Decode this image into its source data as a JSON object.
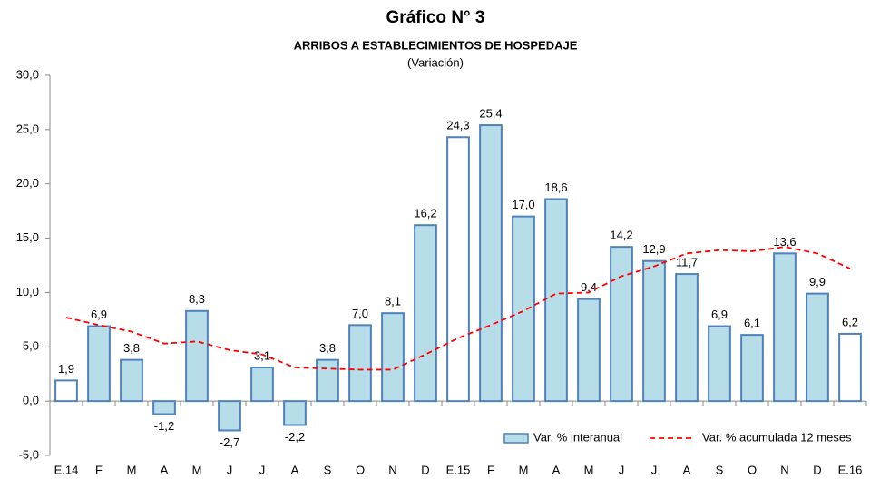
{
  "chart_data": {
    "type": "bar_line",
    "title": "Gráfico N° 3",
    "subtitle": "ARRIBOS A ESTABLECIMIENTOS DE HOSPEDAJE",
    "y_axis_label": "(Variación)",
    "categories": [
      "E.14",
      "F",
      "M",
      "A",
      "M",
      "J",
      "J",
      "A",
      "S",
      "O",
      "N",
      "D",
      "E.15",
      "F",
      "M",
      "A",
      "M",
      "J",
      "J",
      "A",
      "S",
      "O",
      "N",
      "D",
      "E.16"
    ],
    "series": [
      {
        "name": "Var. % interanual",
        "type": "bar",
        "color": "#b7dde8",
        "edge_color": "#4f81bd",
        "bar_colors": [
          "#ffffff",
          "#b7dde8",
          "#b7dde8",
          "#b7dde8",
          "#b7dde8",
          "#b7dde8",
          "#b7dde8",
          "#b7dde8",
          "#b7dde8",
          "#b7dde8",
          "#b7dde8",
          "#b7dde8",
          "#ffffff",
          "#b7dde8",
          "#b7dde8",
          "#b7dde8",
          "#b7dde8",
          "#b7dde8",
          "#b7dde8",
          "#b7dde8",
          "#b7dde8",
          "#b7dde8",
          "#b7dde8",
          "#b7dde8",
          "#ffffff"
        ],
        "values": [
          1.9,
          6.9,
          3.8,
          -1.2,
          8.3,
          -2.7,
          3.1,
          -2.2,
          3.8,
          7.0,
          8.1,
          16.2,
          24.3,
          25.4,
          17.0,
          18.6,
          9.4,
          14.2,
          12.9,
          11.7,
          6.9,
          6.1,
          13.6,
          9.9,
          6.2
        ],
        "value_labels": [
          "1,9",
          "6,9",
          "3,8",
          "-1,2",
          "8,3",
          "-2,7",
          "3,1",
          "-2,2",
          "3,8",
          "7,0",
          "8,1",
          "16,2",
          "24,3",
          "25,4",
          "17,0",
          "18,6",
          "9,4",
          "14,2",
          "12,9",
          "11,7",
          "6,9",
          "6,1",
          "13,6",
          "9,9",
          "6,2"
        ]
      },
      {
        "name": "Var. % acumulada 12 meses",
        "type": "line",
        "color": "#ff0000",
        "dashed": true,
        "values": [
          7.7,
          7.0,
          6.4,
          5.3,
          5.5,
          4.7,
          4.3,
          3.1,
          3.0,
          2.9,
          2.9,
          4.3,
          5.8,
          7.0,
          8.3,
          9.9,
          10.0,
          11.5,
          12.4,
          13.6,
          13.9,
          13.8,
          14.2,
          13.6,
          12.2
        ]
      }
    ],
    "ylim": [
      -5,
      30
    ],
    "yticks": [
      {
        "value": -5,
        "label": "-5,0"
      },
      {
        "value": 0,
        "label": "0,0"
      },
      {
        "value": 5,
        "label": "5,0"
      },
      {
        "value": 10,
        "label": "10,0"
      },
      {
        "value": 15,
        "label": "15,0"
      },
      {
        "value": 20,
        "label": "20,0"
      },
      {
        "value": 25,
        "label": "25,0"
      },
      {
        "value": 30,
        "label": "30,0"
      }
    ],
    "grid": false,
    "legend": "bottom-right"
  }
}
